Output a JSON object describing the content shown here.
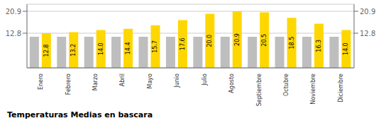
{
  "chart_data": {
    "type": "bar",
    "title": "Temperaturas Medias en bascara",
    "categories": [
      "Enero",
      "Febrero",
      "Marzo",
      "Abril",
      "Mayo",
      "Junio",
      "Julio",
      "Agosto",
      "Septiembre",
      "Octubre",
      "Noviembre",
      "Diciembre"
    ],
    "series": [
      {
        "color": "#BEBEBE",
        "values": [
          11.5,
          11.5,
          11.5,
          11.5,
          11.5,
          11.5,
          11.5,
          11.5,
          11.5,
          11.5,
          11.5,
          11.5
        ]
      },
      {
        "color": "#FFD700",
        "values": [
          12.8,
          13.2,
          14.0,
          14.4,
          15.7,
          17.6,
          20.0,
          20.9,
          20.5,
          18.5,
          16.3,
          14.0
        ],
        "data_labels": true,
        "value_labels": [
          "12.8",
          "13.2",
          "14.0",
          "14.4",
          "15.7",
          "17.6",
          "20.0",
          "20.9",
          "20.5",
          "18.5",
          "16.3",
          "14.0"
        ]
      }
    ],
    "ylim": [
      0,
      23.5
    ],
    "yticks": [
      12.8,
      20.9
    ],
    "y2lim": [
      0,
      23.5
    ],
    "y2ticks": [
      12.8,
      20.9
    ],
    "grid": true
  }
}
